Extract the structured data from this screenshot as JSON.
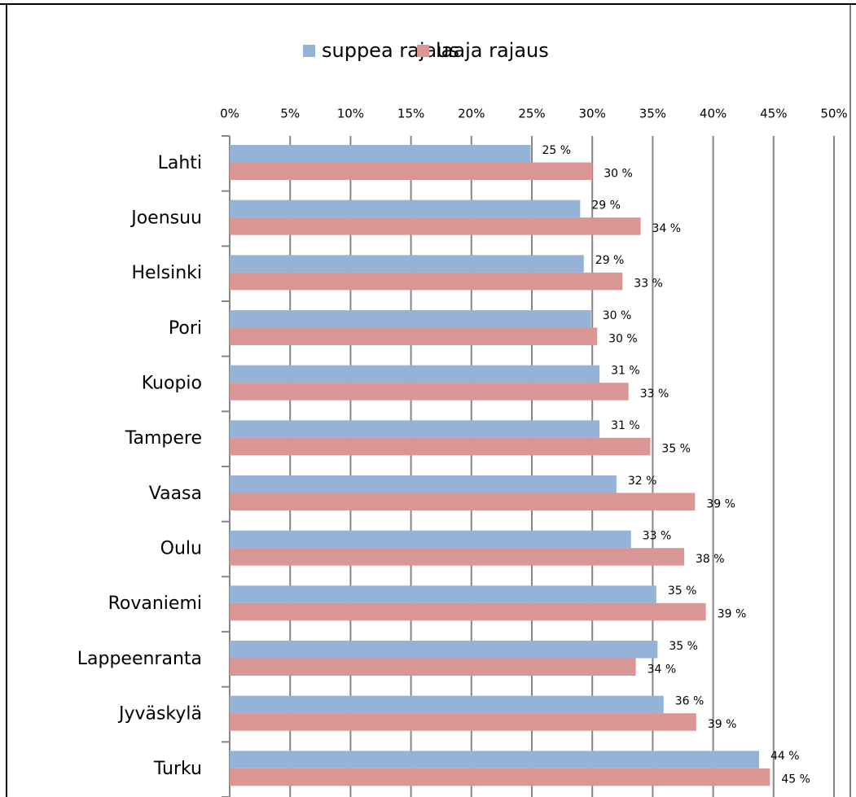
{
  "chart_data": {
    "type": "hbar",
    "categories": [
      "Lahti",
      "Joensuu",
      "Helsinki",
      "Pori",
      "Kuopio",
      "Tampere",
      "Vaasa",
      "Oulu",
      "Rovaniemi",
      "Lappeenranta",
      "Jyväskylä",
      "Turku"
    ],
    "series": [
      {
        "name": "suppea rajaus",
        "color": "#95b3d7",
        "values": [
          24.9,
          29.0,
          29.3,
          29.9,
          30.6,
          30.6,
          32.0,
          33.2,
          35.3,
          35.4,
          35.9,
          43.8
        ],
        "value_labels": [
          "25 %",
          "29 %",
          "29 %",
          "30 %",
          "31 %",
          "31 %",
          "32 %",
          "33 %",
          "35 %",
          "35 %",
          "36 %",
          "44 %"
        ]
      },
      {
        "name": "laaja rajaus",
        "color": "#d99694",
        "values": [
          30.0,
          34.0,
          32.5,
          30.4,
          33.0,
          34.8,
          38.5,
          37.6,
          39.4,
          33.6,
          38.6,
          44.7
        ],
        "value_labels": [
          "30 %",
          "34 %",
          "33 %",
          "30 %",
          "33 %",
          "35 %",
          "39 %",
          "38 %",
          "39 %",
          "34 %",
          "39 %",
          "45 %"
        ]
      }
    ],
    "xlim": [
      0,
      50
    ],
    "xticks": [
      {
        "value": 0,
        "label": "0%"
      },
      {
        "value": 5,
        "label": "5%"
      },
      {
        "value": 10,
        "label": "10%"
      },
      {
        "value": 15,
        "label": "15%"
      },
      {
        "value": 20,
        "label": "20%"
      },
      {
        "value": 25,
        "label": "25%"
      },
      {
        "value": 30,
        "label": "30%"
      },
      {
        "value": 35,
        "label": "35%"
      },
      {
        "value": 40,
        "label": "40%"
      },
      {
        "value": 45,
        "label": "45%"
      },
      {
        "value": 50,
        "label": "50%"
      }
    ],
    "grid": true,
    "legend": "top"
  }
}
